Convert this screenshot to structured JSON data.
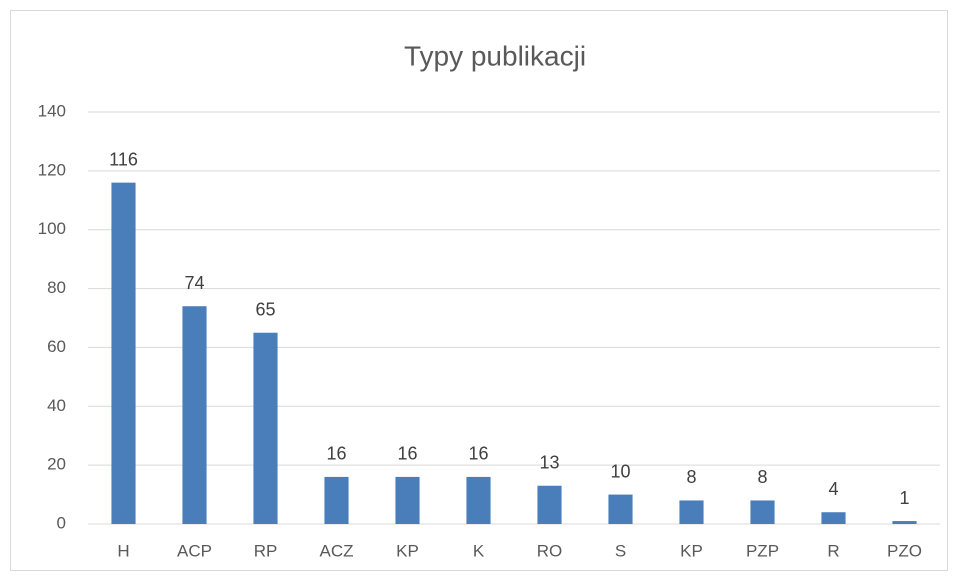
{
  "chart_data": {
    "type": "bar",
    "title": "Typy publikacji",
    "categories": [
      "H",
      "ACP",
      "RP",
      "ACZ",
      "KP",
      "K",
      "RO",
      "S",
      "KP",
      "PZP",
      "R",
      "PZO"
    ],
    "values": [
      116,
      74,
      65,
      16,
      16,
      16,
      13,
      10,
      8,
      8,
      4,
      1
    ],
    "color": "#4a7ebb",
    "ylim": [
      0,
      140
    ],
    "yticks": [
      0,
      20,
      40,
      60,
      80,
      100,
      120,
      140
    ],
    "grid": true
  }
}
